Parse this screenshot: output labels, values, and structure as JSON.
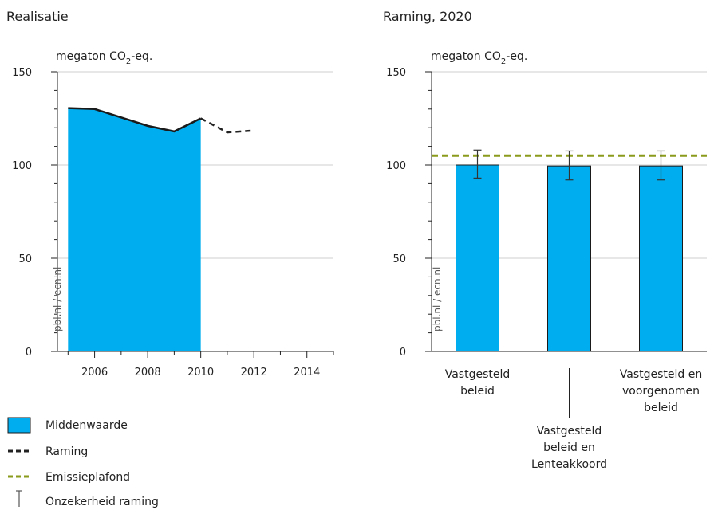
{
  "chart_data": [
    {
      "type": "area",
      "title": "Realisatie",
      "ylabel": "megaton CO",
      "ylabel_sub": "2",
      "ylabel_suffix": "-eq.",
      "source": "pbl.nl / ecn.nl",
      "xlim": [
        2004.6,
        2015
      ],
      "ylim": [
        0,
        150
      ],
      "xticks": [
        2006,
        2008,
        2010,
        2012,
        2014
      ],
      "yticks": [
        0,
        50,
        100,
        150
      ],
      "grid": true,
      "series": [
        {
          "name": "Middenwaarde",
          "style": "area",
          "color": "#00AEEF",
          "x": [
            2005,
            2006,
            2007,
            2008,
            2009,
            2010
          ],
          "y": [
            130.5,
            130,
            125.5,
            121,
            118,
            125
          ]
        },
        {
          "name": "Raming",
          "style": "dashed",
          "color": "#222222",
          "x": [
            2010,
            2011,
            2012
          ],
          "y": [
            125,
            117.5,
            118.5
          ]
        }
      ]
    },
    {
      "type": "bar",
      "title": "Raming, 2020",
      "ylabel": "megaton CO",
      "ylabel_sub": "2",
      "ylabel_suffix": "-eq.",
      "source": "pbl.nl / ecn.nl",
      "ylim": [
        0,
        150
      ],
      "yticks": [
        0,
        50,
        100,
        150
      ],
      "grid": true,
      "categories": [
        [
          "Vastgesteld",
          "beleid"
        ],
        [
          "Vastgesteld",
          "beleid en",
          "Lenteakkoord"
        ],
        [
          "Vastgesteld en",
          "voorgenomen",
          "beleid"
        ]
      ],
      "values": [
        100,
        99.5,
        99.5
      ],
      "error_low": [
        93,
        92,
        92
      ],
      "error_high": [
        108,
        107.5,
        107.5
      ],
      "bar_color": "#00AEEF",
      "reference_line": {
        "name": "Emissieplafond",
        "value": 105,
        "color": "#8A9A1B"
      }
    }
  ],
  "legend": {
    "items": [
      {
        "label": "Middenwaarde",
        "kind": "swatch",
        "color": "#00AEEF"
      },
      {
        "label": "Raming",
        "kind": "dashed",
        "color": "#222222"
      },
      {
        "label": "Emissieplafond",
        "kind": "dashed",
        "color": "#8A9A1B"
      },
      {
        "label": "Onzekerheid raming",
        "kind": "errorbar",
        "color": "#555555"
      }
    ]
  }
}
